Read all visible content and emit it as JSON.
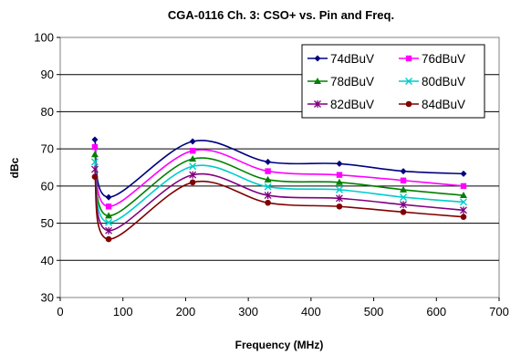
{
  "chart_data": {
    "type": "line",
    "title": "CGA-0116 Ch. 3: CSO+ vs. Pin and Freq.",
    "xlabel": "Frequency (MHz)",
    "ylabel": "dBc",
    "xlim": [
      0,
      700
    ],
    "ylim": [
      30,
      100
    ],
    "x_ticks": [
      0,
      100,
      200,
      300,
      400,
      500,
      600,
      700
    ],
    "y_ticks": [
      30,
      40,
      50,
      60,
      70,
      80,
      90,
      100
    ],
    "grid": "horizontal",
    "legend_position": "top-right",
    "x": [
      55.25,
      77.25,
      211.25,
      331.25,
      445.25,
      547.25,
      643.25
    ],
    "series": [
      {
        "name": "74dBuV",
        "color": "#000080",
        "marker": "diamond",
        "values": [
          72.5,
          57.0,
          72.0,
          66.5,
          66.0,
          64.0,
          63.3
        ]
      },
      {
        "name": "76dBuV",
        "color": "#ff00ff",
        "marker": "square",
        "values": [
          70.5,
          54.5,
          69.5,
          64.0,
          63.0,
          61.5,
          60.0
        ]
      },
      {
        "name": "78dBuV",
        "color": "#008000",
        "marker": "triangle",
        "values": [
          68.5,
          52.0,
          67.3,
          61.7,
          61.0,
          59.0,
          57.5
        ]
      },
      {
        "name": "80dBuV",
        "color": "#00cccc",
        "marker": "x",
        "values": [
          66.5,
          50.2,
          65.3,
          59.8,
          59.0,
          57.0,
          55.7
        ]
      },
      {
        "name": "82dBuV",
        "color": "#800080",
        "marker": "asterisk",
        "values": [
          64.5,
          48.0,
          63.0,
          57.5,
          56.7,
          55.0,
          53.5
        ]
      },
      {
        "name": "84dBuV",
        "color": "#800000",
        "marker": "circle",
        "values": [
          62.5,
          45.7,
          61.0,
          55.5,
          54.5,
          53.0,
          51.7
        ]
      }
    ]
  }
}
